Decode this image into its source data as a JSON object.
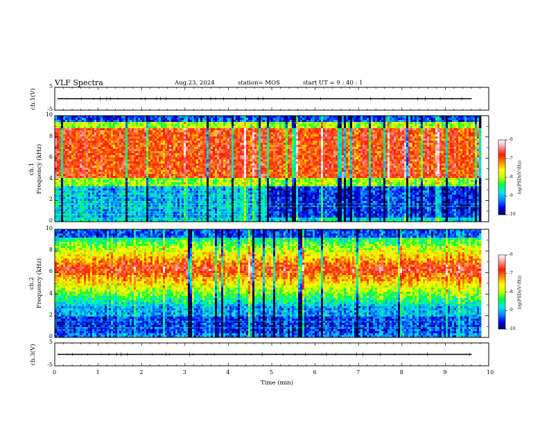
{
  "header": {
    "title": "VLF Spectra",
    "date": "Aug.23, 2024",
    "station": "station= MOS",
    "start_ut": "start  UT =   9 : 40 : 1"
  },
  "chart_data": [
    {
      "type": "line",
      "name": "ch1-waveform",
      "ylabel": "ch.1(V)",
      "ylim": [
        -5,
        5
      ],
      "y_ticks": [
        "5",
        "-5"
      ],
      "trace_level": 0
    },
    {
      "type": "heatmap",
      "name": "ch1-spectrogram",
      "ylabel_line1": "ch.1",
      "ylabel_line2": "Frequency (kHz)",
      "ylim": [
        0,
        10
      ],
      "y_ticks": [
        "0",
        "2",
        "4",
        "6",
        "8",
        "10"
      ],
      "intense_band_khz": [
        4,
        9.5
      ],
      "low_noise_change_min": 4.9
    },
    {
      "type": "heatmap",
      "name": "ch2-spectrogram",
      "ylabel_line1": "ch.2",
      "ylabel_line2": "Frequency (kHz)",
      "ylim": [
        0,
        10
      ],
      "y_ticks": [
        "0",
        "2",
        "4",
        "6",
        "8",
        "10"
      ],
      "intense_band_khz": [
        4,
        8
      ],
      "band_peak_khz": 6.3
    },
    {
      "type": "line",
      "name": "ch3-waveform",
      "ylabel": "ch.3(V)",
      "ylim": [
        -5,
        5
      ],
      "y_ticks": [
        "5",
        "-5"
      ],
      "trace_level": 0
    }
  ],
  "x_axis": {
    "label": "Time  (min)",
    "range": [
      0,
      10
    ],
    "ticks": [
      "0",
      "1",
      "2",
      "3",
      "4",
      "5",
      "6",
      "7",
      "8",
      "9",
      "10"
    ],
    "data_end_min": 9.8
  },
  "colorbar": {
    "label": "log(PSD)(V²/Hz)",
    "range": [
      -10,
      -6
    ],
    "ticks": [
      "-6",
      "-7",
      "-8",
      "-9",
      "-10"
    ],
    "colors": [
      "#00004a",
      "#0000ff",
      "#0090ff",
      "#00e8e8",
      "#00ff40",
      "#c8ff00",
      "#ffff00",
      "#ff9000",
      "#ff1a00",
      "#ff9090",
      "#ffffff"
    ]
  }
}
